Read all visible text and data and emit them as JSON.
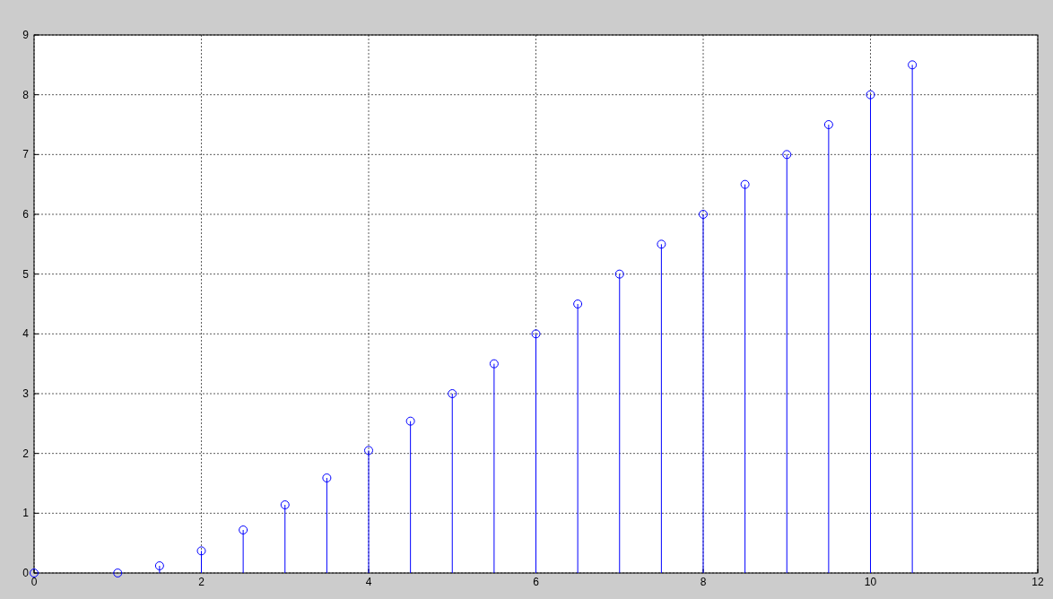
{
  "chart_data": {
    "type": "lollipop",
    "x": [
      0,
      1,
      1.5,
      2,
      2.5,
      3,
      3.5,
      4,
      4.5,
      5,
      5.5,
      6,
      6.5,
      7,
      7.5,
      8,
      8.5,
      9,
      9.5,
      10,
      10.5
    ],
    "series": [
      {
        "color": "#0000ff",
        "values": [
          0,
          0,
          0.12,
          0.37,
          0.72,
          1.14,
          1.59,
          2.05,
          2.54,
          3,
          3.5,
          4,
          4.5,
          5,
          5.5,
          6,
          6.5,
          7,
          7.5,
          8,
          8.5
        ]
      }
    ],
    "xlim": [
      0,
      12
    ],
    "xticks": [
      0,
      2,
      4,
      6,
      8,
      10,
      12
    ],
    "ylim": [
      0,
      9
    ],
    "yticks": [
      0,
      1,
      2,
      3,
      4,
      5,
      6,
      7,
      8,
      9
    ],
    "grid": true,
    "marker": "circle",
    "line_style": "solid"
  }
}
